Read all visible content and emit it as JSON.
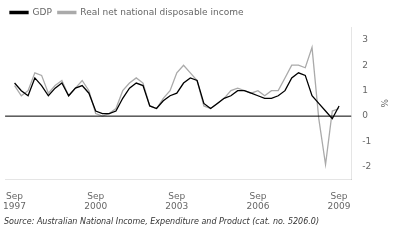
{
  "chart_data": {
    "type": "line",
    "x": [
      1997.75,
      1998,
      1998.25,
      1998.5,
      1998.75,
      1999,
      1999.25,
      1999.5,
      1999.75,
      2000,
      2000.25,
      2000.5,
      2000.75,
      2001,
      2001.25,
      2001.5,
      2001.75,
      2002,
      2002.25,
      2002.5,
      2002.75,
      2003,
      2003.25,
      2003.5,
      2003.75,
      2004,
      2004.25,
      2004.5,
      2004.75,
      2005,
      2005.25,
      2005.5,
      2005.75,
      2006,
      2006.25,
      2006.5,
      2006.75,
      2007,
      2007.25,
      2007.5,
      2007.75,
      2008,
      2008.25,
      2008.5,
      2008.75,
      2009,
      2009.25,
      2009.5,
      2009.75
    ],
    "series": [
      {
        "name": "GDP",
        "color": "#000000",
        "values": [
          1.3,
          1.0,
          0.8,
          1.5,
          1.2,
          0.8,
          1.1,
          1.3,
          0.8,
          1.1,
          1.2,
          0.9,
          0.2,
          0.1,
          0.1,
          0.2,
          0.7,
          1.1,
          1.3,
          1.2,
          0.4,
          0.3,
          0.6,
          0.8,
          0.9,
          1.3,
          1.5,
          1.4,
          0.5,
          0.3,
          0.5,
          0.7,
          0.8,
          1.0,
          1.0,
          0.9,
          0.8,
          0.7,
          0.7,
          0.8,
          1.0,
          1.5,
          1.7,
          1.6,
          0.8,
          0.5,
          0.2,
          -0.1,
          0.4
        ]
      },
      {
        "name": "Real net national disposable income",
        "color": "#aaaaaa",
        "values": [
          1.2,
          0.8,
          1.0,
          1.7,
          1.6,
          0.9,
          1.2,
          1.4,
          0.8,
          1.1,
          1.4,
          1.0,
          0.1,
          0.0,
          0.1,
          0.3,
          1.0,
          1.3,
          1.5,
          1.3,
          0.4,
          0.3,
          0.7,
          1.0,
          1.7,
          2.0,
          1.7,
          1.4,
          0.4,
          0.3,
          0.5,
          0.7,
          1.0,
          1.1,
          1.0,
          0.9,
          1.0,
          0.8,
          1.0,
          1.0,
          1.5,
          2.0,
          2.0,
          1.9,
          2.7,
          -0.1,
          -1.9,
          0.2,
          0.3
        ]
      }
    ],
    "ylabel": "%",
    "ylim": [
      -2.5,
      3.5
    ],
    "yticks": [
      -2,
      -1,
      0,
      1,
      2,
      3
    ],
    "xlim": [
      1997.4,
      2010.2
    ],
    "xticks": [
      {
        "value": 1997.75,
        "label": "Sep\n1997"
      },
      {
        "value": 2000.75,
        "label": "Sep\n2000"
      },
      {
        "value": 2003.75,
        "label": "Sep\n2003"
      },
      {
        "value": 2006.75,
        "label": "Sep\n2006"
      },
      {
        "value": 2009.75,
        "label": "Sep\n2009"
      }
    ],
    "reference_lines": [
      0
    ],
    "annotations": [
      "Source: Australian National Income, Expenditure and Product (cat. no. 5206.0)"
    ],
    "legend": "upper left",
    "grid": false
  }
}
